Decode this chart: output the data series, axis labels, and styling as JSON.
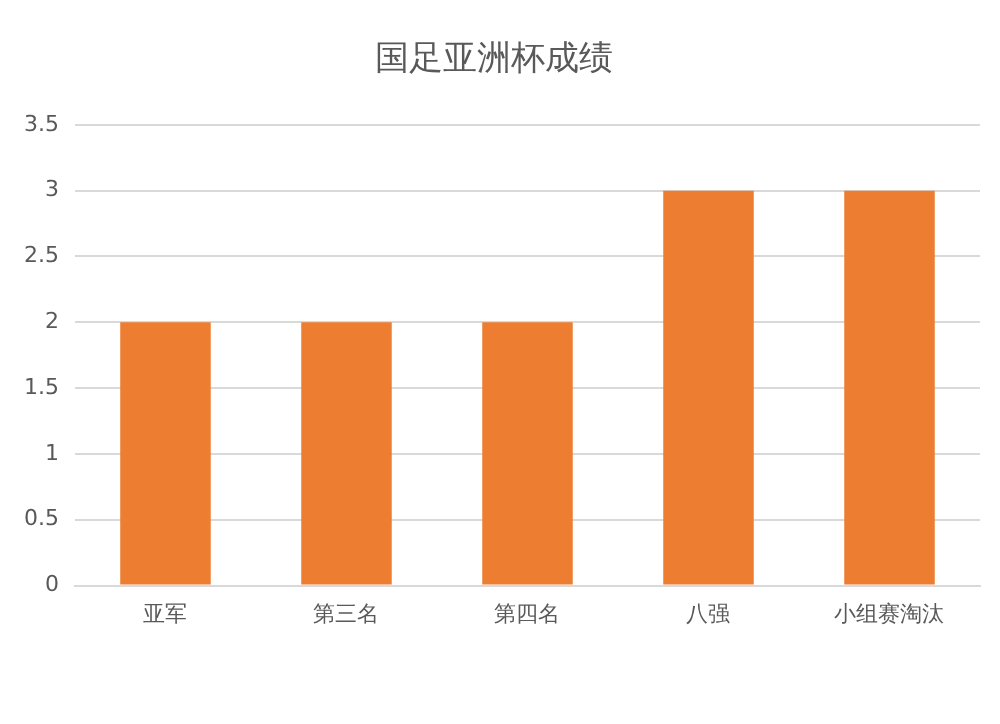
{
  "chart_data": {
    "type": "bar",
    "title": "国足亚洲杯成绩",
    "categories": [
      "亚军",
      "第三名",
      "第四名",
      "八强",
      "小组赛淘汰"
    ],
    "values": [
      2,
      2,
      2,
      3,
      3
    ],
    "color": "#ed7d31",
    "ylim": [
      0,
      3.5
    ],
    "yticks": [
      0,
      0.5,
      1,
      1.5,
      2,
      2.5,
      3,
      3.5
    ],
    "grid": "y"
  }
}
